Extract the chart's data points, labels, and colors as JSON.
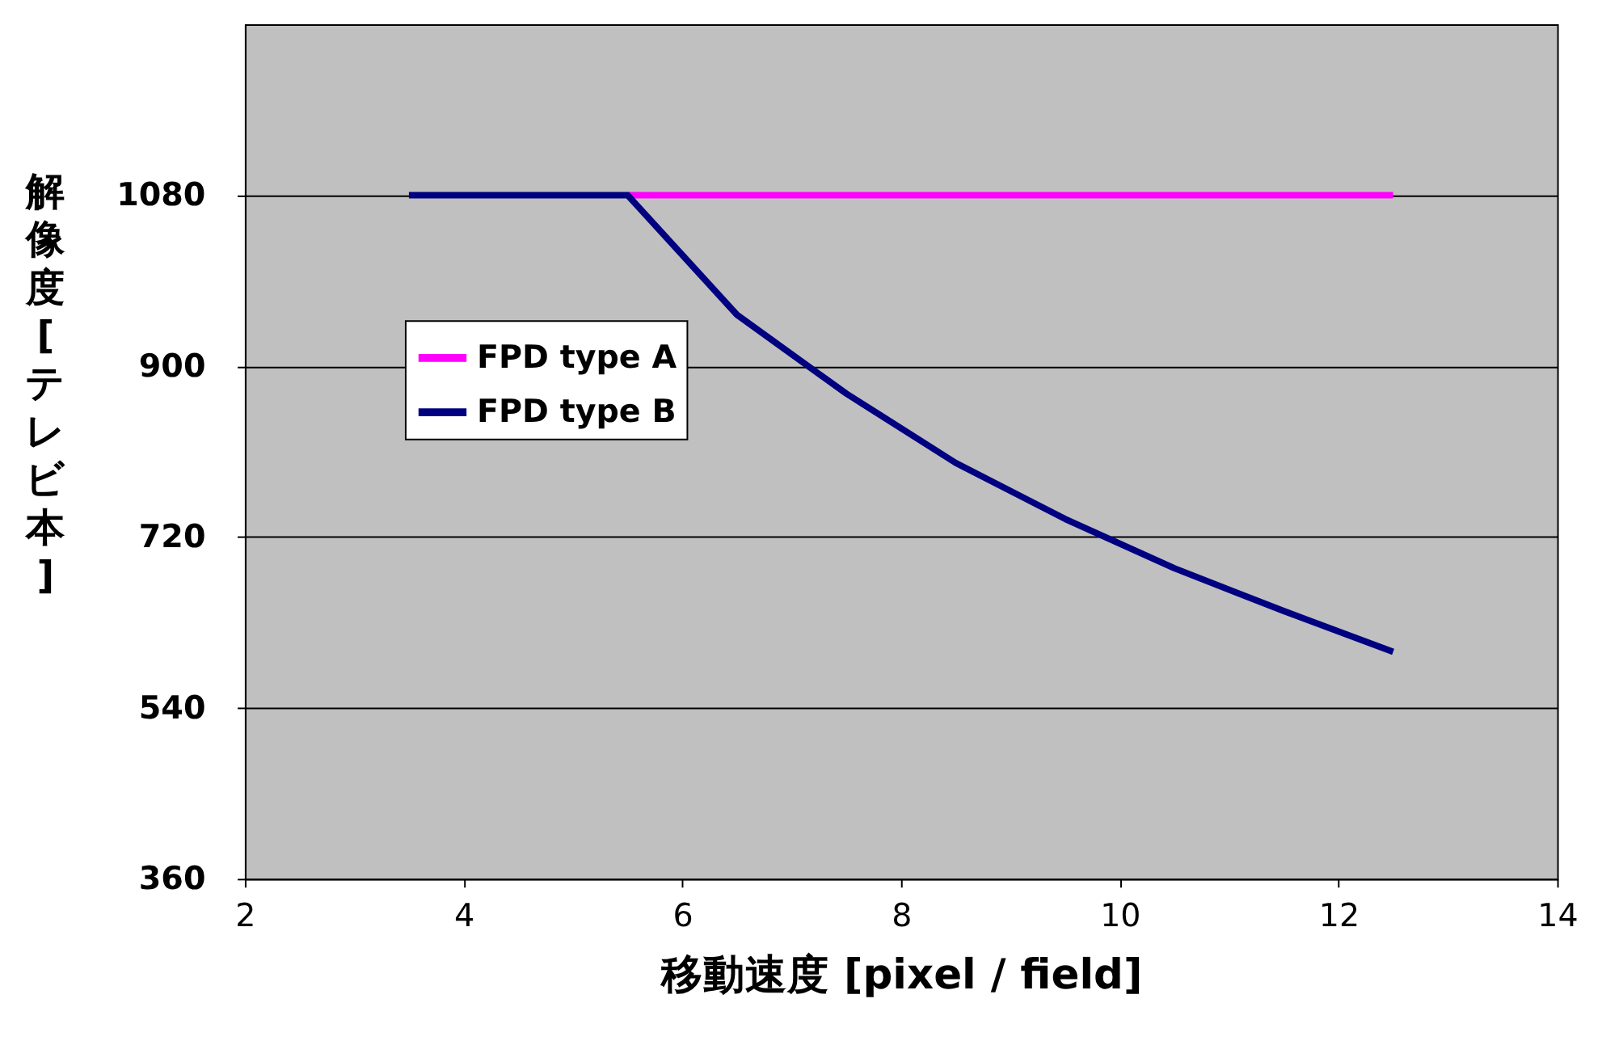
{
  "chart_data": {
    "type": "line",
    "xlabel": "移動速度 [pixel / field]",
    "ylabel": "解像度 [テレビ本]",
    "x": [
      3.5,
      4.5,
      5.5,
      6.5,
      7.5,
      8.5,
      9.5,
      10.5,
      11.5,
      12.5
    ],
    "series": [
      {
        "name": "FPD type A",
        "color": "#ff00ff",
        "values": [
          null,
          null,
          1080,
          1080,
          1080,
          1080,
          1080,
          1080,
          1080,
          1080
        ]
      },
      {
        "name": "FPD type B",
        "color": "#000080",
        "values": [
          1080,
          1080,
          1080,
          954,
          871,
          798,
          739,
          687,
          642,
          599
        ]
      }
    ],
    "xlim": [
      2,
      14
    ],
    "xticks": [
      2,
      4,
      6,
      8,
      10,
      12,
      14
    ],
    "ylim": [
      360,
      1260
    ],
    "yticks": [
      360,
      540,
      720,
      900,
      1080
    ],
    "grid": "y",
    "legend": "left",
    "marker": "none",
    "line_style": "solid"
  }
}
